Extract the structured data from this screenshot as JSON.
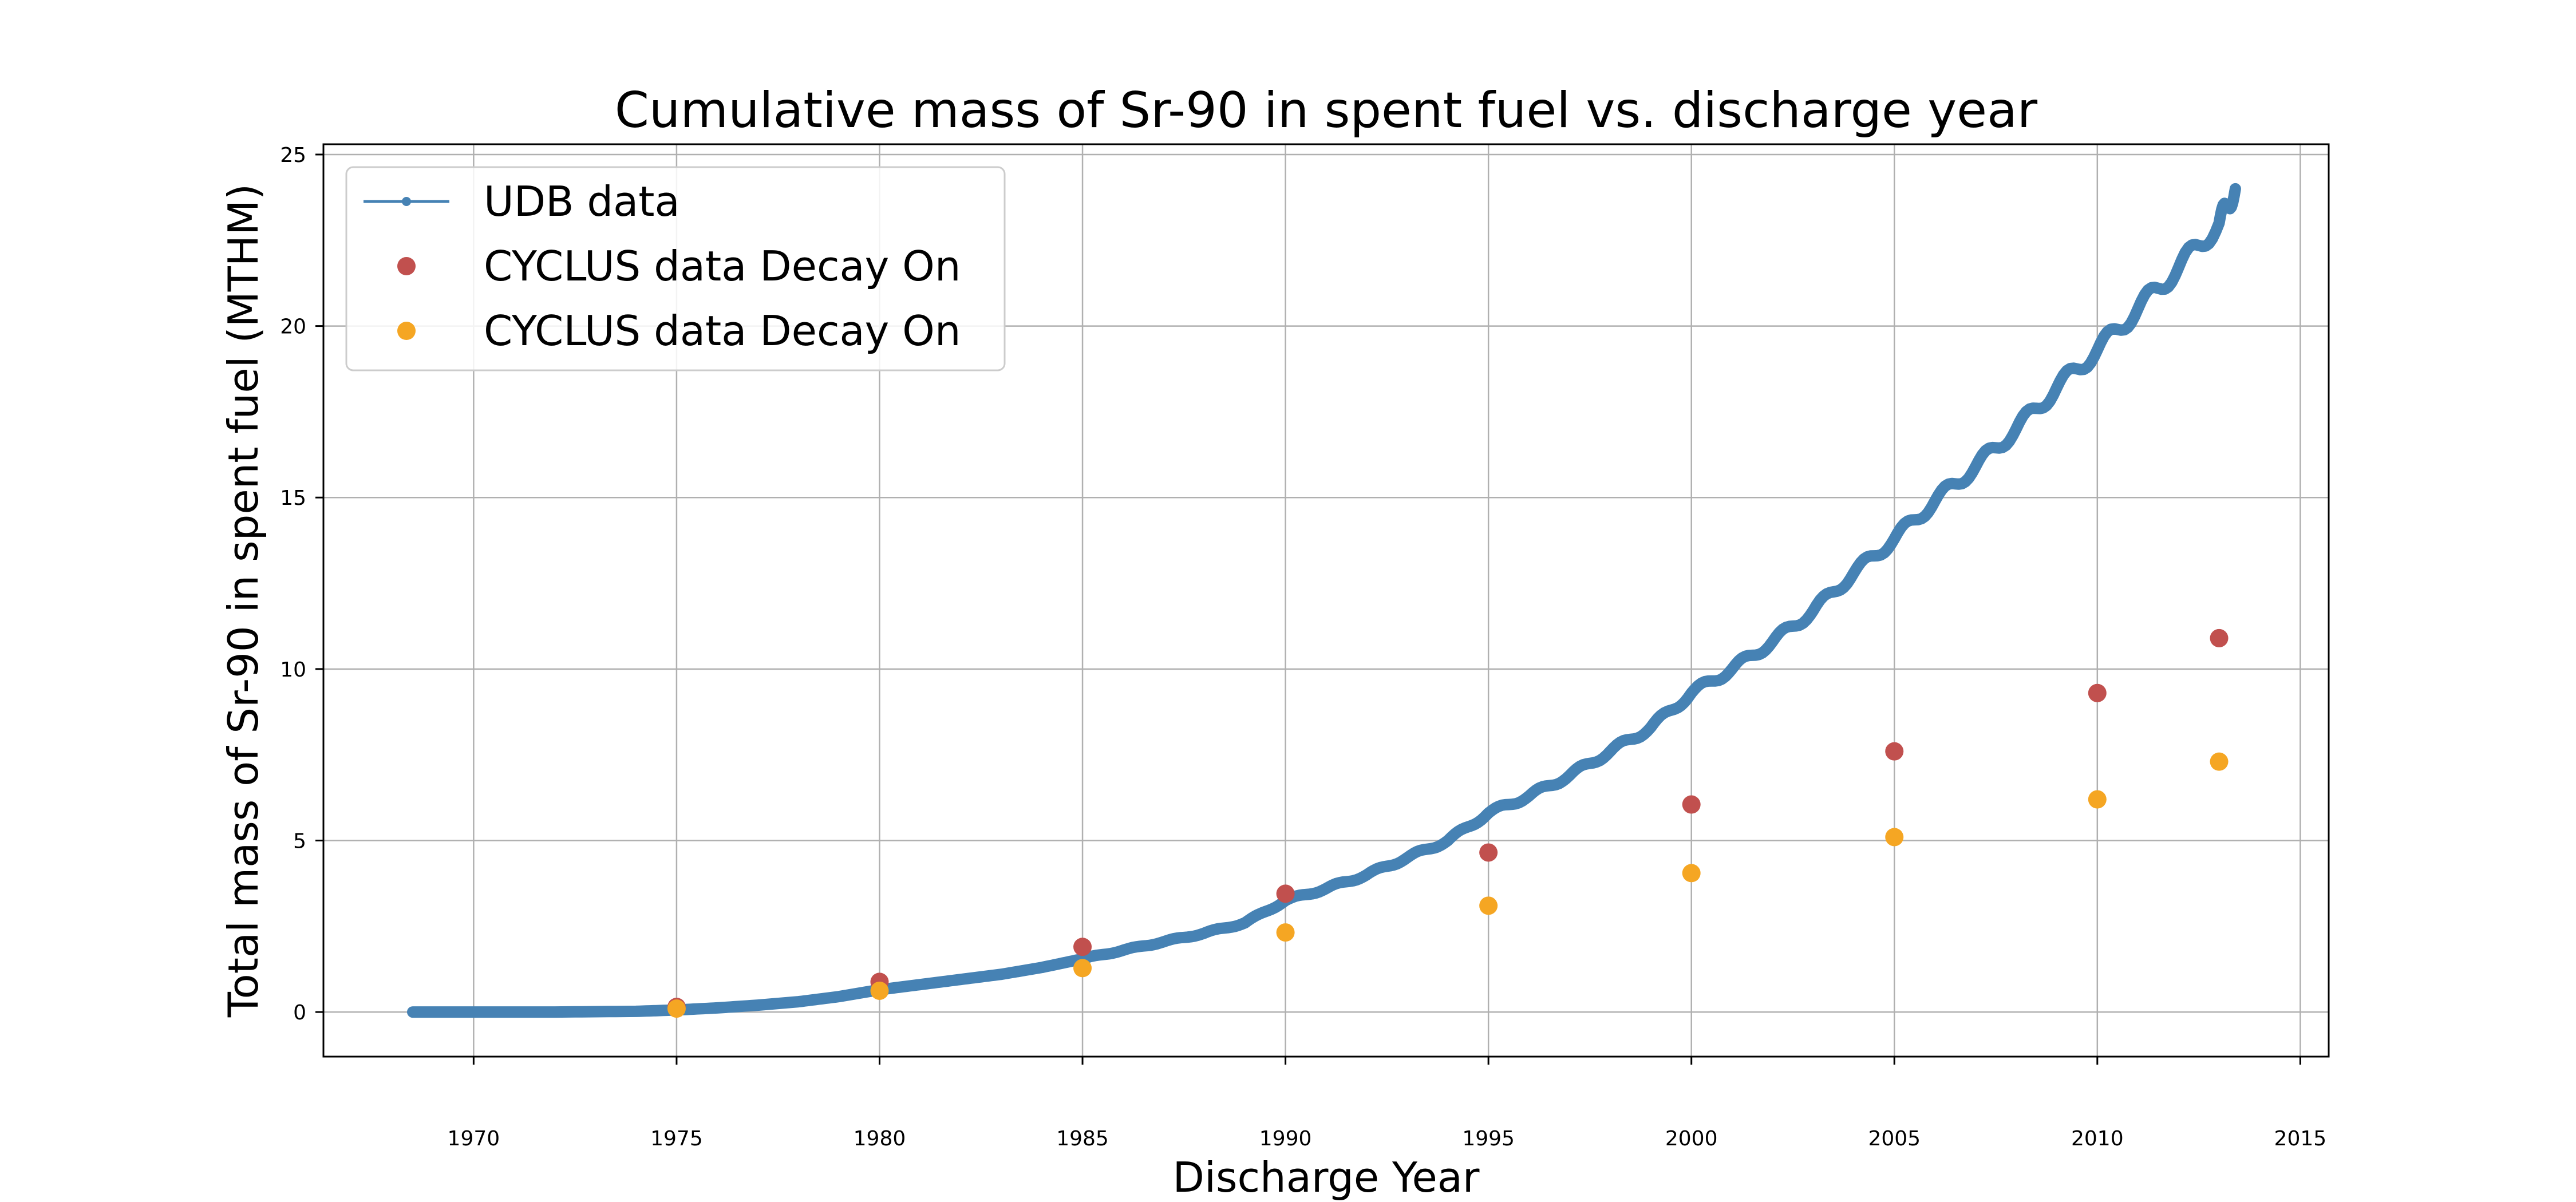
{
  "chart_data": {
    "type": "line",
    "title": "Cumulative mass of Sr-90 in spent fuel vs. discharge year",
    "xlabel": "Discharge Year",
    "ylabel": "Total mass of Sr-90 in spent fuel (MTHM)",
    "xlim": [
      1966.3,
      2015.7
    ],
    "ylim": [
      -1.3,
      25.3
    ],
    "xticks": [
      1970,
      1975,
      1980,
      1985,
      1990,
      1995,
      2000,
      2005,
      2010,
      2015
    ],
    "yticks": [
      0,
      5,
      10,
      15,
      20,
      25
    ],
    "grid": true,
    "legend_position": "top-left",
    "series": [
      {
        "name": "UDB data",
        "kind": "line",
        "color": "#4682b4",
        "x": [
          1968.5,
          1970,
          1972,
          1974,
          1975,
          1976,
          1977,
          1978,
          1979,
          1980,
          1981,
          1982,
          1983,
          1984,
          1985,
          1986,
          1987,
          1988,
          1989,
          1990,
          1991,
          1992,
          1993,
          1994,
          1995,
          1996,
          1997,
          1998,
          1999,
          2000,
          2001,
          2002,
          2003,
          2004,
          2005,
          2006,
          2007,
          2008,
          2009,
          2010,
          2011,
          2012,
          2013,
          2013.4
        ],
        "y": [
          0,
          0,
          0,
          0.02,
          0.06,
          0.12,
          0.2,
          0.3,
          0.45,
          0.65,
          0.8,
          0.95,
          1.1,
          1.3,
          1.55,
          1.8,
          2.05,
          2.3,
          2.6,
          3.25,
          3.6,
          4.0,
          4.5,
          5.0,
          5.8,
          6.3,
          6.9,
          7.6,
          8.3,
          9.3,
          10.0,
          10.8,
          11.7,
          12.8,
          13.8,
          14.9,
          15.9,
          17.0,
          18.2,
          19.3,
          20.5,
          21.7,
          23.0,
          24.0
        ]
      },
      {
        "name": "CYCLUS data Decay On",
        "kind": "scatter",
        "color": "#c1504e",
        "x": [
          1975,
          1980,
          1985,
          1990,
          1995,
          2000,
          2005,
          2010,
          2013
        ],
        "y": [
          0.15,
          0.88,
          1.9,
          3.45,
          4.65,
          6.05,
          7.6,
          9.3,
          10.9
        ]
      },
      {
        "name": "CYCLUS data Decay On",
        "kind": "scatter",
        "color": "#f5a623",
        "x": [
          1975,
          1980,
          1985,
          1990,
          1995,
          2000,
          2005,
          2010,
          2013
        ],
        "y": [
          0.1,
          0.62,
          1.28,
          2.32,
          3.1,
          4.05,
          5.1,
          6.2,
          7.3
        ]
      }
    ]
  }
}
